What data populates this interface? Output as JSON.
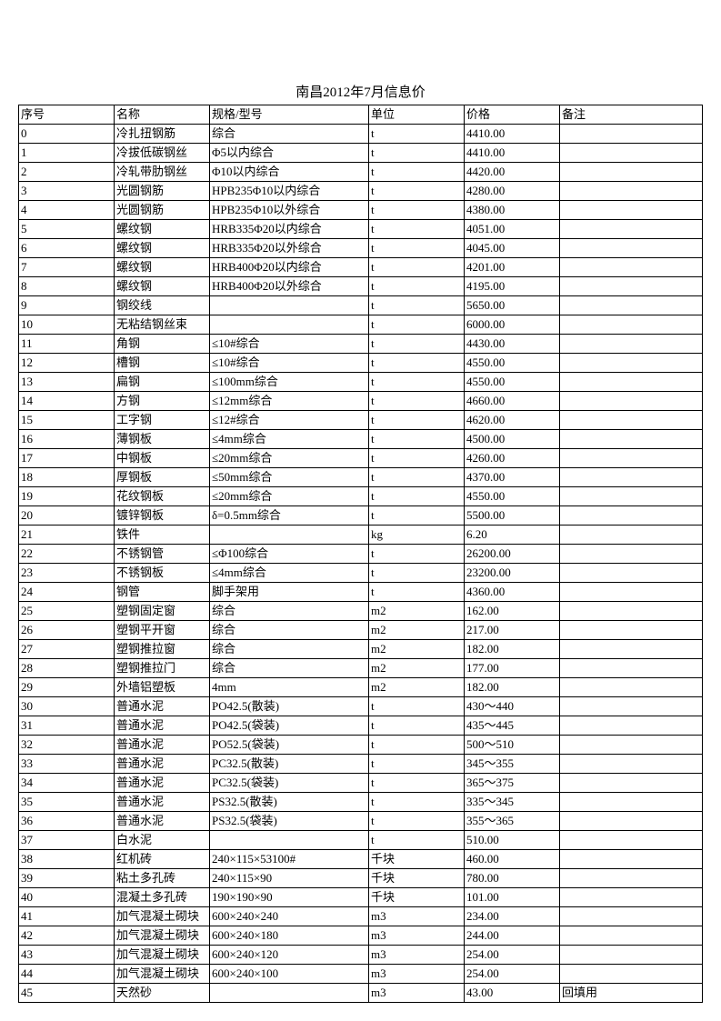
{
  "title": "南昌2012年7月信息价",
  "columns": [
    "序号",
    "名称",
    "规格/型号",
    "单位",
    "价格",
    "备注"
  ],
  "rows": [
    [
      "0",
      "冷扎扭钢筋",
      "综合",
      "t",
      "4410.00",
      ""
    ],
    [
      "1",
      "冷拔低碳钢丝",
      "Φ5以内综合",
      "t",
      "4410.00",
      ""
    ],
    [
      "2",
      "冷轧带肋钢丝",
      "Φ10以内综合",
      "t",
      "4420.00",
      ""
    ],
    [
      "3",
      "光圆钢筋",
      "HPB235Φ10以内综合",
      "t",
      "4280.00",
      ""
    ],
    [
      "4",
      "光圆钢筋",
      "HPB235Φ10以外综合",
      "t",
      "4380.00",
      ""
    ],
    [
      "5",
      "螺纹钢",
      "HRB335Φ20以内综合",
      "t",
      "4051.00",
      ""
    ],
    [
      "6",
      "螺纹钢",
      "HRB335Φ20以外综合",
      "t",
      "4045.00",
      ""
    ],
    [
      "7",
      "螺纹钢",
      "HRB400Φ20以内综合",
      "t",
      "4201.00",
      ""
    ],
    [
      "8",
      "螺纹钢",
      "HRB400Φ20以外综合",
      "t",
      "4195.00",
      ""
    ],
    [
      "9",
      "钢绞线",
      "",
      "t",
      "5650.00",
      ""
    ],
    [
      "10",
      "无粘结钢丝束",
      "",
      "t",
      "6000.00",
      ""
    ],
    [
      "11",
      "角钢",
      "≤10#综合",
      "t",
      "4430.00",
      ""
    ],
    [
      "12",
      "槽钢",
      "≤10#综合",
      "t",
      "4550.00",
      ""
    ],
    [
      "13",
      "扁钢",
      "≤100mm综合",
      "t",
      "4550.00",
      ""
    ],
    [
      "14",
      "方钢",
      "≤12mm综合",
      "t",
      "4660.00",
      ""
    ],
    [
      "15",
      "工字钢",
      "≤12#综合",
      "t",
      "4620.00",
      ""
    ],
    [
      "16",
      "薄钢板",
      "≤4mm综合",
      "t",
      "4500.00",
      ""
    ],
    [
      "17",
      "中钢板",
      "≤20mm综合",
      "t",
      "4260.00",
      ""
    ],
    [
      "18",
      "厚钢板",
      "≤50mm综合",
      "t",
      "4370.00",
      ""
    ],
    [
      "19",
      "花纹钢板",
      "≤20mm综合",
      "t",
      "4550.00",
      ""
    ],
    [
      "20",
      "镀锌钢板",
      "δ=0.5mm综合",
      "t",
      "5500.00",
      ""
    ],
    [
      "21",
      "铁件",
      "",
      "kg",
      "6.20",
      ""
    ],
    [
      "22",
      "不锈钢管",
      "≤Φ100综合",
      "t",
      "26200.00",
      ""
    ],
    [
      "23",
      "不锈钢板",
      "≤4mm综合",
      "t",
      "23200.00",
      ""
    ],
    [
      "24",
      "钢管",
      "脚手架用",
      "t",
      "4360.00",
      ""
    ],
    [
      "25",
      "塑钢固定窗",
      "综合",
      "m2",
      "162.00",
      ""
    ],
    [
      "26",
      "塑钢平开窗",
      "综合",
      "m2",
      "217.00",
      ""
    ],
    [
      "27",
      "塑钢推拉窗",
      "综合",
      "m2",
      "182.00",
      ""
    ],
    [
      "28",
      "塑钢推拉门",
      "综合",
      "m2",
      "177.00",
      ""
    ],
    [
      "29",
      "外墙铝塑板",
      "4mm",
      "m2",
      "182.00",
      ""
    ],
    [
      "30",
      "普通水泥",
      "PO42.5(散装)",
      "t",
      "430～440",
      ""
    ],
    [
      "31",
      "普通水泥",
      "PO42.5(袋装)",
      "t",
      "435～445",
      ""
    ],
    [
      "32",
      "普通水泥",
      "PO52.5(袋装)",
      "t",
      "500～510",
      ""
    ],
    [
      "33",
      "普通水泥",
      "PC32.5(散装)",
      "t",
      "345～355",
      ""
    ],
    [
      "34",
      "普通水泥",
      "PC32.5(袋装)",
      "t",
      "365～375",
      ""
    ],
    [
      "35",
      "普通水泥",
      "PS32.5(散装)",
      "t",
      "335～345",
      ""
    ],
    [
      "36",
      "普通水泥",
      "PS32.5(袋装)",
      "t",
      "355～365",
      ""
    ],
    [
      "37",
      "白水泥",
      "",
      "t",
      "510.00",
      ""
    ],
    [
      "38",
      "红机砖",
      "240×115×53100#",
      "千块",
      "460.00",
      ""
    ],
    [
      "39",
      "粘土多孔砖",
      "240×115×90",
      "千块",
      "780.00",
      ""
    ],
    [
      "40",
      "混凝土多孔砖",
      "190×190×90",
      "千块",
      "101.00",
      ""
    ],
    [
      "41",
      "加气混凝土砌块",
      "600×240×240",
      "m3",
      "234.00",
      ""
    ],
    [
      "42",
      "加气混凝土砌块",
      "600×240×180",
      "m3",
      "244.00",
      ""
    ],
    [
      "43",
      "加气混凝土砌块",
      "600×240×120",
      "m3",
      "254.00",
      ""
    ],
    [
      "44",
      "加气混凝土砌块",
      "600×240×100",
      "m3",
      "254.00",
      ""
    ],
    [
      "45",
      "天然砂",
      "",
      "m3",
      "43.00",
      "回填用"
    ]
  ]
}
